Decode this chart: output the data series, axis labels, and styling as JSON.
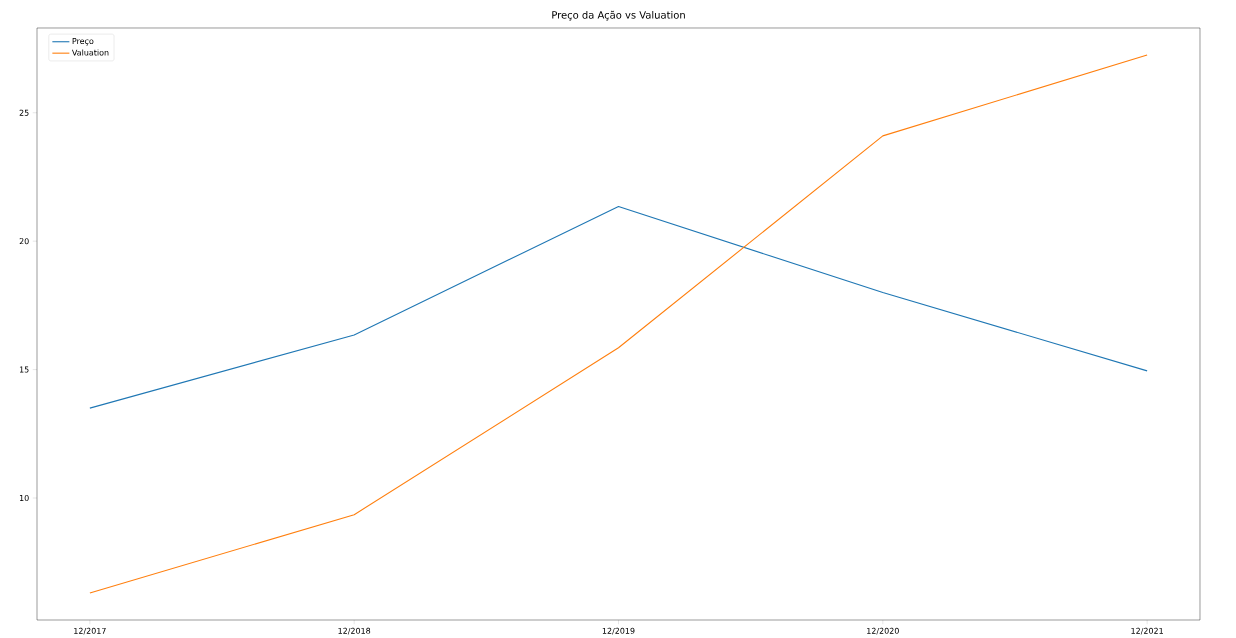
{
  "chart_data": {
    "type": "line",
    "title": "Preço da Ação vs Valuation",
    "categories": [
      "12/2017",
      "12/2018",
      "12/2019",
      "12/2020",
      "12/2021"
    ],
    "series": [
      {
        "name": "Preço",
        "color": "#1f77b4",
        "values": [
          13.5,
          16.35,
          21.35,
          18.0,
          14.95
        ]
      },
      {
        "name": "Valuation",
        "color": "#ff7f0e",
        "values": [
          6.3,
          9.35,
          15.85,
          24.1,
          27.25
        ]
      }
    ],
    "ylim": [
      5.25,
      28.3
    ],
    "yticks": [
      10,
      15,
      20,
      25
    ],
    "legend": "top left",
    "grid": false
  }
}
